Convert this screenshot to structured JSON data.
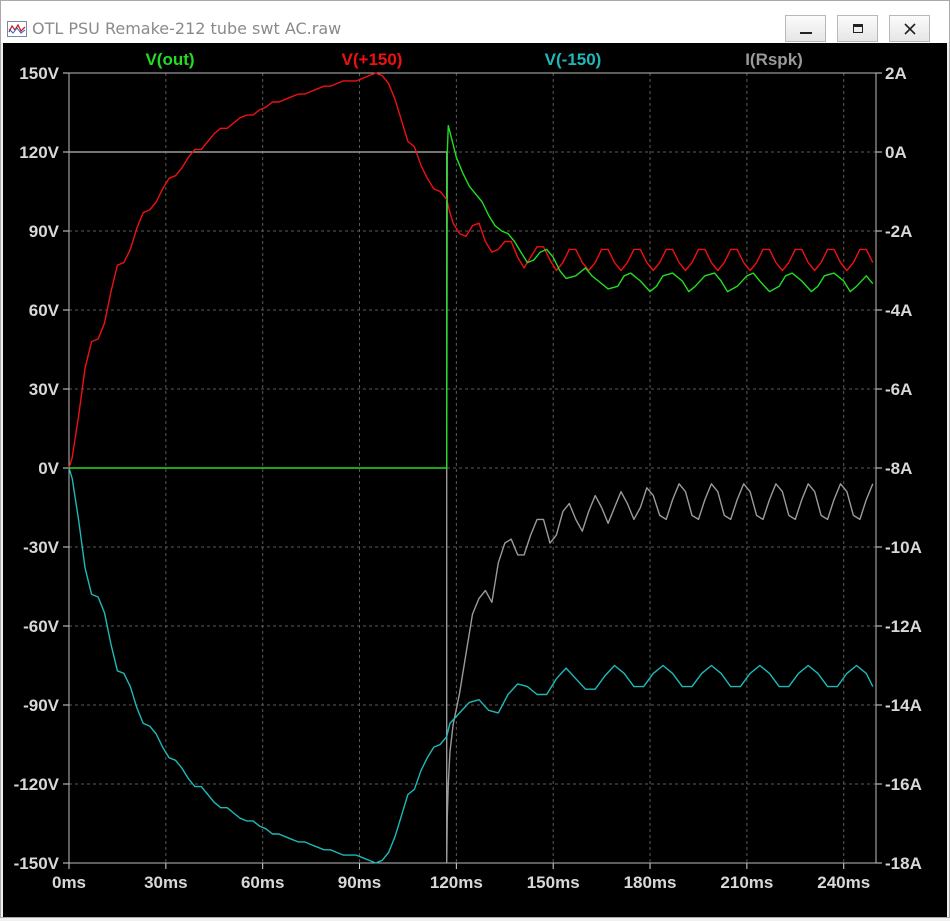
{
  "window": {
    "title": "OTL PSU Remake-212 tube swt AC.raw",
    "buttons": {
      "minimize": "minimize",
      "maximize": "maximize",
      "close": "close"
    }
  },
  "colors": {
    "V(out)": "#22dd22",
    "V(+150)": "#ee1111",
    "V(-150)": "#1fb8b8",
    "I(Rspk)": "#9a9a9a",
    "axis_text": "#d8d8d8",
    "background": "#000000",
    "grid": "#5a5a5a"
  },
  "chart_data": {
    "type": "line",
    "title": "",
    "xlabel": "",
    "ylabel": "",
    "grid": true,
    "legend_placement": "top",
    "x_ticks": [
      "0ms",
      "30ms",
      "60ms",
      "90ms",
      "120ms",
      "150ms",
      "180ms",
      "210ms",
      "240ms"
    ],
    "y_left_ticks": [
      "150V",
      "120V",
      "90V",
      "60V",
      "30V",
      "0V",
      "-30V",
      "-60V",
      "-90V",
      "-120V",
      "-150V"
    ],
    "y_right_ticks": [
      "2A",
      "0A",
      "-2A",
      "-4A",
      "-6A",
      "-8A",
      "-10A",
      "-12A",
      "-14A",
      "-16A",
      "-18A"
    ],
    "xlim_ms": [
      0,
      250
    ],
    "ylim_left_V": [
      -150,
      150
    ],
    "ylim_right_A": [
      -18,
      2
    ],
    "series": [
      {
        "name": "V(out)",
        "axis": "left",
        "unit": "V",
        "x": [
          0,
          117,
          117.2,
          117.5,
          120,
          122,
          124,
          126,
          128,
          130,
          132,
          134,
          136,
          138,
          140,
          142,
          144,
          146,
          148,
          150,
          152,
          154,
          157,
          160,
          162,
          164,
          167,
          170,
          172,
          174,
          177,
          180,
          182,
          184,
          187,
          190,
          192,
          194,
          197,
          200,
          202,
          204,
          207,
          210,
          212,
          214,
          217,
          220,
          222,
          224,
          227,
          230,
          232,
          234,
          237,
          240,
          242,
          244,
          247,
          249
        ],
        "y": [
          0,
          0,
          120,
          130,
          118,
          112,
          107,
          104,
          101,
          96,
          92,
          90,
          89,
          86,
          82,
          78,
          79,
          82,
          83,
          80,
          75,
          72,
          73,
          76,
          73,
          71,
          68,
          69,
          73,
          74,
          71,
          67,
          69,
          73,
          74,
          71,
          67,
          69,
          73,
          74,
          71,
          67,
          69,
          73,
          74,
          71,
          67,
          69,
          73,
          74,
          71,
          67,
          69,
          73,
          74,
          71,
          67,
          69,
          73,
          70
        ]
      },
      {
        "name": "V(+150)",
        "axis": "left",
        "unit": "V",
        "x": [
          0,
          1,
          3,
          5,
          7,
          9,
          11,
          13,
          15,
          17,
          19,
          21,
          23,
          25,
          27,
          29,
          31,
          33,
          35,
          37,
          39,
          41,
          43,
          45,
          47,
          49,
          51,
          53,
          55,
          57,
          59,
          61,
          63,
          65,
          67,
          69,
          71,
          73,
          75,
          77,
          79,
          81,
          83,
          85,
          87,
          89,
          91,
          93,
          95,
          97,
          99,
          101,
          103,
          105,
          107,
          109,
          111,
          113,
          115,
          117,
          118,
          119,
          121,
          123,
          125,
          127,
          129,
          131,
          133,
          135,
          137,
          139,
          141,
          143,
          145,
          147,
          149,
          151,
          153,
          155,
          157,
          159,
          161,
          163,
          165,
          167,
          169,
          171,
          173,
          175,
          177,
          179,
          181,
          183,
          185,
          187,
          189,
          191,
          193,
          195,
          197,
          199,
          201,
          203,
          205,
          207,
          209,
          211,
          213,
          215,
          217,
          219,
          221,
          223,
          225,
          227,
          229,
          231,
          233,
          235,
          237,
          239,
          241,
          243,
          245,
          247,
          249
        ],
        "y": [
          0,
          4,
          20,
          38,
          48,
          49,
          55,
          67,
          77,
          78,
          83,
          91,
          97,
          98,
          101,
          106,
          110,
          111,
          114,
          118,
          121,
          121,
          124,
          127,
          129,
          129,
          131,
          133,
          134,
          134,
          136,
          137,
          139,
          139,
          140,
          141,
          142,
          142,
          143,
          144,
          145,
          145,
          146,
          147,
          147,
          147,
          148,
          149,
          150,
          149,
          146,
          140,
          132,
          124,
          122,
          115,
          110,
          106,
          105,
          102,
          97,
          93,
          89,
          88,
          92,
          93,
          86,
          82,
          83,
          86,
          86,
          80,
          76,
          80,
          84,
          84,
          79,
          75,
          78,
          83,
          83,
          78,
          75,
          78,
          83,
          83,
          78,
          75,
          78,
          83,
          83,
          78,
          75,
          78,
          83,
          83,
          78,
          75,
          78,
          83,
          83,
          78,
          75,
          78,
          83,
          83,
          78,
          75,
          78,
          83,
          83,
          78,
          75,
          78,
          83,
          83,
          78,
          75,
          78,
          83,
          83,
          78,
          75,
          78,
          83,
          83,
          78
        ]
      },
      {
        "name": "V(-150)",
        "axis": "left",
        "unit": "V",
        "x": [
          0,
          1,
          3,
          5,
          7,
          9,
          11,
          13,
          15,
          17,
          19,
          21,
          23,
          25,
          27,
          29,
          31,
          33,
          35,
          37,
          39,
          41,
          43,
          45,
          47,
          49,
          51,
          53,
          55,
          57,
          59,
          61,
          63,
          65,
          67,
          69,
          71,
          73,
          75,
          77,
          79,
          81,
          83,
          85,
          87,
          89,
          91,
          93,
          95,
          97,
          99,
          101,
          103,
          105,
          107,
          109,
          111,
          113,
          115,
          117,
          118,
          121,
          124,
          127,
          130,
          133,
          136,
          139,
          142,
          145,
          148,
          151,
          154,
          157,
          160,
          163,
          166,
          169,
          172,
          175,
          178,
          181,
          184,
          187,
          190,
          193,
          196,
          199,
          202,
          205,
          208,
          211,
          214,
          217,
          220,
          223,
          226,
          229,
          232,
          235,
          238,
          241,
          244,
          247,
          249
        ],
        "y": [
          0,
          -4,
          -20,
          -38,
          -48,
          -49,
          -55,
          -67,
          -77,
          -78,
          -83,
          -91,
          -97,
          -98,
          -101,
          -106,
          -110,
          -111,
          -114,
          -118,
          -121,
          -121,
          -124,
          -127,
          -129,
          -129,
          -131,
          -133,
          -134,
          -134,
          -136,
          -137,
          -139,
          -139,
          -140,
          -141,
          -142,
          -142,
          -143,
          -144,
          -145,
          -145,
          -146,
          -147,
          -147,
          -147,
          -148,
          -149,
          -150,
          -149,
          -146,
          -140,
          -132,
          -124,
          -122,
          -115,
          -110,
          -106,
          -105,
          -102,
          -97,
          -93,
          -89,
          -88,
          -92,
          -93,
          -86,
          -82,
          -83,
          -86,
          -86,
          -80,
          -76,
          -80,
          -84,
          -84,
          -79,
          -75,
          -78,
          -83,
          -83,
          -78,
          -75,
          -78,
          -83,
          -83,
          -78,
          -75,
          -78,
          -83,
          -83,
          -78,
          -75,
          -78,
          -83,
          -83,
          -78,
          -75,
          -78,
          -83,
          -83,
          -78,
          -75,
          -78,
          -83
        ]
      },
      {
        "name": "I(Rspk)",
        "axis": "right",
        "unit": "A",
        "x": [
          0,
          116.9,
          117,
          117,
          117.2,
          117.5,
          118,
          119,
          121,
          123,
          125,
          127,
          129,
          131,
          133,
          135,
          137,
          139,
          141,
          143,
          145,
          147,
          149,
          151,
          153,
          155,
          157,
          159,
          161,
          163,
          165,
          167,
          169,
          171,
          173,
          175,
          177,
          179,
          181,
          183,
          185,
          187,
          189,
          191,
          193,
          195,
          197,
          199,
          201,
          203,
          205,
          207,
          209,
          211,
          213,
          215,
          217,
          219,
          221,
          223,
          225,
          227,
          229,
          231,
          233,
          235,
          237,
          239,
          241,
          243,
          245,
          247,
          249
        ],
        "y": [
          0,
          0,
          0,
          -18,
          -16.8,
          -16,
          -15.2,
          -14.5,
          -13.7,
          -12.7,
          -11.7,
          -11.3,
          -11.1,
          -11.4,
          -10.4,
          -9.9,
          -9.8,
          -10.2,
          -10.2,
          -9.7,
          -9.3,
          -9.3,
          -9.9,
          -9.7,
          -9.1,
          -8.9,
          -9.3,
          -9.6,
          -9.1,
          -8.7,
          -9.0,
          -9.4,
          -9.0,
          -8.6,
          -8.9,
          -9.3,
          -9.0,
          -8.5,
          -8.7,
          -9.2,
          -9.3,
          -8.8,
          -8.4,
          -8.6,
          -9.2,
          -9.3,
          -8.8,
          -8.4,
          -8.6,
          -9.2,
          -9.3,
          -8.8,
          -8.4,
          -8.6,
          -9.2,
          -9.3,
          -8.8,
          -8.4,
          -8.6,
          -9.2,
          -9.3,
          -8.8,
          -8.4,
          -8.6,
          -9.2,
          -9.3,
          -8.8,
          -8.4,
          -8.6,
          -9.2,
          -9.3,
          -8.8,
          -8.4
        ]
      }
    ]
  }
}
